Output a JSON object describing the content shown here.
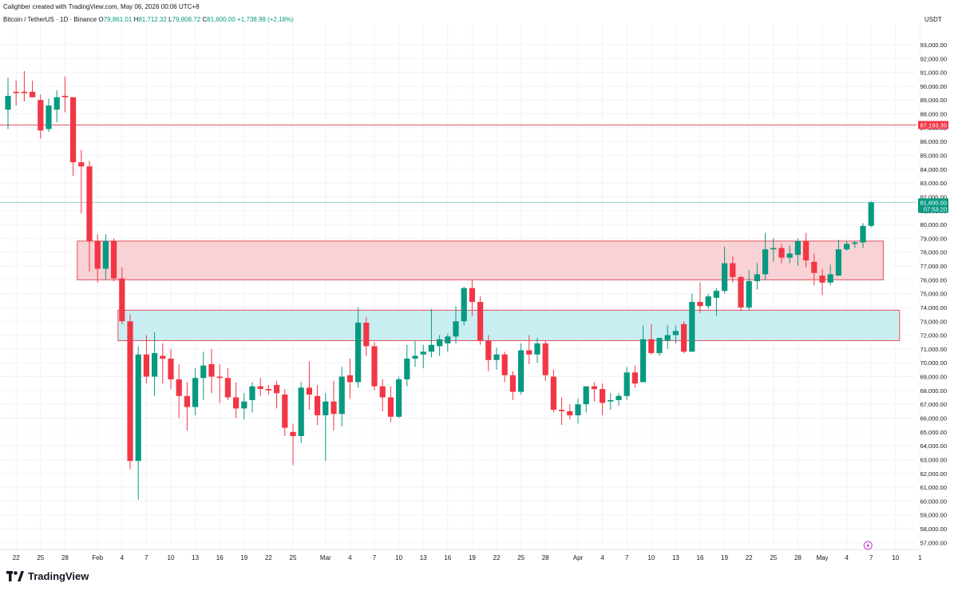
{
  "header": {
    "creator_line": "Calighber created with TradingView.com, May 06, 2026 00:06 UTC+8",
    "symbol": "Bitcoin / TetherUS · 1D · Binance",
    "open_label": "O",
    "open": "79,861.01",
    "high_label": "H",
    "high": "81,712.32",
    "low_label": "L",
    "low": "79,808.72",
    "close_label": "C",
    "close": "81,600.00",
    "change": "+1,738.99 (+2.18%)"
  },
  "brand": {
    "name": "TradingView",
    "icon": "tradingview-logo-icon"
  },
  "colors": {
    "up": "#089981",
    "down": "#f23645",
    "resistance_fill": "#f9d2d5",
    "support_fill": "#c9eef2",
    "zone_border": "#e0525c",
    "red_line": "#e55561",
    "price_line": "#9ad4c8",
    "grid": "#f0f3fa"
  },
  "chart_data": {
    "type": "candlestick",
    "currency": "USDT",
    "ylim": [
      56500,
      94500
    ],
    "y_ticks": [
      57000,
      58000,
      59000,
      60000,
      61000,
      62000,
      63000,
      64000,
      65000,
      66000,
      67000,
      68000,
      69000,
      70000,
      71000,
      72000,
      73000,
      74000,
      75000,
      76000,
      77000,
      78000,
      79000,
      80000,
      81000,
      82000,
      83000,
      84000,
      85000,
      86000,
      87000,
      88000,
      89000,
      90000,
      91000,
      92000,
      93000
    ],
    "y_tick_labels": [
      "57,000.00",
      "58,000.00",
      "59,000.00",
      "60,000.00",
      "61,000.00",
      "62,000.00",
      "63,000.00",
      "64,000.00",
      "65,000.00",
      "66,000.00",
      "67,000.00",
      "68,000.00",
      "69,000.00",
      "70,000.00",
      "71,000.00",
      "72,000.00",
      "73,000.00",
      "74,000.00",
      "75,000.00",
      "76,000.00",
      "77,000.00",
      "78,000.00",
      "79,000.00",
      "80,000.00",
      "81,000.00",
      "82,000.00",
      "83,000.00",
      "84,000.00",
      "85,000.00",
      "86,000.00",
      "87,000.00",
      "88,000.00",
      "89,000.00",
      "90,000.00",
      "91,000.00",
      "92,000.00",
      "93,000.00"
    ],
    "x_labels": [
      {
        "i": 1,
        "label": "22"
      },
      {
        "i": 4,
        "label": "25"
      },
      {
        "i": 7,
        "label": "28"
      },
      {
        "i": 11,
        "label": "Feb"
      },
      {
        "i": 14,
        "label": "4"
      },
      {
        "i": 17,
        "label": "7"
      },
      {
        "i": 20,
        "label": "10"
      },
      {
        "i": 23,
        "label": "13"
      },
      {
        "i": 26,
        "label": "16"
      },
      {
        "i": 29,
        "label": "19"
      },
      {
        "i": 32,
        "label": "22"
      },
      {
        "i": 35,
        "label": "25"
      },
      {
        "i": 39,
        "label": "Mar"
      },
      {
        "i": 42,
        "label": "4"
      },
      {
        "i": 45,
        "label": "7"
      },
      {
        "i": 48,
        "label": "10"
      },
      {
        "i": 51,
        "label": "13"
      },
      {
        "i": 54,
        "label": "16"
      },
      {
        "i": 57,
        "label": "19"
      },
      {
        "i": 60,
        "label": "22"
      },
      {
        "i": 63,
        "label": "25"
      },
      {
        "i": 66,
        "label": "28"
      },
      {
        "i": 70,
        "label": "Apr"
      },
      {
        "i": 73,
        "label": "4"
      },
      {
        "i": 76,
        "label": "7"
      },
      {
        "i": 79,
        "label": "10"
      },
      {
        "i": 82,
        "label": "13"
      },
      {
        "i": 85,
        "label": "16"
      },
      {
        "i": 88,
        "label": "19"
      },
      {
        "i": 91,
        "label": "22"
      },
      {
        "i": 94,
        "label": "25"
      },
      {
        "i": 97,
        "label": "28"
      },
      {
        "i": 100,
        "label": "May"
      },
      {
        "i": 103,
        "label": "4"
      },
      {
        "i": 106,
        "label": "7"
      },
      {
        "i": 109,
        "label": "10"
      },
      {
        "i": 112,
        "label": "1"
      }
    ],
    "candles": [
      {
        "o": 88300,
        "h": 90600,
        "l": 86900,
        "c": 89300
      },
      {
        "o": 89600,
        "h": 90400,
        "l": 88600,
        "c": 89500
      },
      {
        "o": 89600,
        "h": 91100,
        "l": 88900,
        "c": 89500
      },
      {
        "o": 89600,
        "h": 90400,
        "l": 89200,
        "c": 89200
      },
      {
        "o": 89000,
        "h": 89400,
        "l": 86200,
        "c": 86800
      },
      {
        "o": 86900,
        "h": 89100,
        "l": 86700,
        "c": 88600
      },
      {
        "o": 88300,
        "h": 89700,
        "l": 87400,
        "c": 89200
      },
      {
        "o": 89300,
        "h": 90700,
        "l": 88100,
        "c": 89200
      },
      {
        "o": 89200,
        "h": 89200,
        "l": 83500,
        "c": 84500
      },
      {
        "o": 84500,
        "h": 85400,
        "l": 80800,
        "c": 84200
      },
      {
        "o": 84200,
        "h": 84600,
        "l": 76600,
        "c": 78800
      },
      {
        "o": 78800,
        "h": 79300,
        "l": 75800,
        "c": 76800
      },
      {
        "o": 76800,
        "h": 79300,
        "l": 76000,
        "c": 78800
      },
      {
        "o": 78800,
        "h": 79000,
        "l": 75900,
        "c": 76100
      },
      {
        "o": 76100,
        "h": 76900,
        "l": 72800,
        "c": 73000
      },
      {
        "o": 73000,
        "h": 73500,
        "l": 62300,
        "c": 62900
      },
      {
        "o": 62900,
        "h": 71200,
        "l": 60100,
        "c": 70600
      },
      {
        "o": 70600,
        "h": 72000,
        "l": 68500,
        "c": 69000
      },
      {
        "o": 69000,
        "h": 72200,
        "l": 67600,
        "c": 70700
      },
      {
        "o": 70500,
        "h": 71400,
        "l": 68500,
        "c": 70300
      },
      {
        "o": 70300,
        "h": 71000,
        "l": 68100,
        "c": 68800
      },
      {
        "o": 68800,
        "h": 69900,
        "l": 66000,
        "c": 67600
      },
      {
        "o": 67600,
        "h": 68600,
        "l": 65100,
        "c": 66800
      },
      {
        "o": 66800,
        "h": 69600,
        "l": 66200,
        "c": 68900
      },
      {
        "o": 68900,
        "h": 70800,
        "l": 67300,
        "c": 69800
      },
      {
        "o": 69900,
        "h": 71000,
        "l": 67800,
        "c": 69000
      },
      {
        "o": 69000,
        "h": 69900,
        "l": 67100,
        "c": 68900
      },
      {
        "o": 68900,
        "h": 69600,
        "l": 67300,
        "c": 67500
      },
      {
        "o": 67500,
        "h": 68600,
        "l": 66000,
        "c": 66700
      },
      {
        "o": 66700,
        "h": 67800,
        "l": 65900,
        "c": 67200
      },
      {
        "o": 67300,
        "h": 68600,
        "l": 66400,
        "c": 68300
      },
      {
        "o": 68300,
        "h": 68900,
        "l": 67600,
        "c": 68100
      },
      {
        "o": 68100,
        "h": 68400,
        "l": 67700,
        "c": 68000
      },
      {
        "o": 68400,
        "h": 68700,
        "l": 66700,
        "c": 67800
      },
      {
        "o": 67700,
        "h": 68100,
        "l": 64700,
        "c": 65300
      },
      {
        "o": 65000,
        "h": 65600,
        "l": 62600,
        "c": 64700
      },
      {
        "o": 64700,
        "h": 68600,
        "l": 64200,
        "c": 68200
      },
      {
        "o": 68200,
        "h": 70100,
        "l": 66600,
        "c": 67700
      },
      {
        "o": 67600,
        "h": 68400,
        "l": 65500,
        "c": 66200
      },
      {
        "o": 66200,
        "h": 67800,
        "l": 62900,
        "c": 67200
      },
      {
        "o": 67200,
        "h": 68700,
        "l": 65100,
        "c": 66300
      },
      {
        "o": 66300,
        "h": 69700,
        "l": 65400,
        "c": 69000
      },
      {
        "o": 69100,
        "h": 70300,
        "l": 67400,
        "c": 68600
      },
      {
        "o": 68600,
        "h": 74000,
        "l": 68200,
        "c": 72900
      },
      {
        "o": 72900,
        "h": 73300,
        "l": 70500,
        "c": 71200
      },
      {
        "o": 71200,
        "h": 71500,
        "l": 68000,
        "c": 68300
      },
      {
        "o": 68300,
        "h": 68800,
        "l": 66500,
        "c": 67500
      },
      {
        "o": 67500,
        "h": 68300,
        "l": 65700,
        "c": 66100
      },
      {
        "o": 66100,
        "h": 69000,
        "l": 66000,
        "c": 68800
      },
      {
        "o": 68800,
        "h": 71300,
        "l": 68300,
        "c": 70300
      },
      {
        "o": 70300,
        "h": 71600,
        "l": 69700,
        "c": 70500
      },
      {
        "o": 70600,
        "h": 71300,
        "l": 69600,
        "c": 70800
      },
      {
        "o": 70800,
        "h": 73900,
        "l": 70400,
        "c": 71300
      },
      {
        "o": 71200,
        "h": 72000,
        "l": 70500,
        "c": 71700
      },
      {
        "o": 71400,
        "h": 72100,
        "l": 70800,
        "c": 71900
      },
      {
        "o": 71900,
        "h": 74100,
        "l": 71400,
        "c": 73000
      },
      {
        "o": 73000,
        "h": 75500,
        "l": 72700,
        "c": 75400
      },
      {
        "o": 75400,
        "h": 76000,
        "l": 73400,
        "c": 74400
      },
      {
        "o": 74400,
        "h": 74800,
        "l": 71300,
        "c": 71600
      },
      {
        "o": 71600,
        "h": 72000,
        "l": 69400,
        "c": 70200
      },
      {
        "o": 70200,
        "h": 71100,
        "l": 69500,
        "c": 70600
      },
      {
        "o": 70600,
        "h": 70800,
        "l": 68600,
        "c": 69100
      },
      {
        "o": 69100,
        "h": 69400,
        "l": 67300,
        "c": 67900
      },
      {
        "o": 67900,
        "h": 71400,
        "l": 67700,
        "c": 70900
      },
      {
        "o": 70900,
        "h": 72000,
        "l": 69900,
        "c": 70600
      },
      {
        "o": 70600,
        "h": 71800,
        "l": 70000,
        "c": 71400
      },
      {
        "o": 71400,
        "h": 71600,
        "l": 68700,
        "c": 69100
      },
      {
        "o": 69000,
        "h": 69500,
        "l": 66400,
        "c": 66600
      },
      {
        "o": 66600,
        "h": 67500,
        "l": 65500,
        "c": 66500
      },
      {
        "o": 66500,
        "h": 67000,
        "l": 65900,
        "c": 66200
      },
      {
        "o": 66200,
        "h": 67400,
        "l": 65600,
        "c": 67000
      },
      {
        "o": 67000,
        "h": 68200,
        "l": 66400,
        "c": 68300
      },
      {
        "o": 68300,
        "h": 68600,
        "l": 67200,
        "c": 68100
      },
      {
        "o": 68100,
        "h": 68500,
        "l": 66200,
        "c": 67100
      },
      {
        "o": 67200,
        "h": 67800,
        "l": 66600,
        "c": 67300
      },
      {
        "o": 67300,
        "h": 67800,
        "l": 66900,
        "c": 67600
      },
      {
        "o": 67600,
        "h": 69700,
        "l": 67300,
        "c": 69300
      },
      {
        "o": 69300,
        "h": 69800,
        "l": 68200,
        "c": 68500
      },
      {
        "o": 68600,
        "h": 72700,
        "l": 68600,
        "c": 71700
      },
      {
        "o": 71700,
        "h": 72800,
        "l": 70600,
        "c": 70700
      },
      {
        "o": 70700,
        "h": 71700,
        "l": 70500,
        "c": 71800
      },
      {
        "o": 71600,
        "h": 72700,
        "l": 71000,
        "c": 72000
      },
      {
        "o": 72000,
        "h": 72700,
        "l": 71400,
        "c": 72300
      },
      {
        "o": 72800,
        "h": 73000,
        "l": 70700,
        "c": 70800
      },
      {
        "o": 70800,
        "h": 75000,
        "l": 70800,
        "c": 74400
      },
      {
        "o": 74400,
        "h": 75800,
        "l": 73600,
        "c": 74100
      },
      {
        "o": 74100,
        "h": 75000,
        "l": 73900,
        "c": 74800
      },
      {
        "o": 74700,
        "h": 75400,
        "l": 73400,
        "c": 75200
      },
      {
        "o": 75200,
        "h": 78400,
        "l": 75000,
        "c": 77200
      },
      {
        "o": 77200,
        "h": 77700,
        "l": 75800,
        "c": 76200
      },
      {
        "o": 76200,
        "h": 76300,
        "l": 73800,
        "c": 74000
      },
      {
        "o": 74000,
        "h": 76700,
        "l": 73800,
        "c": 75900
      },
      {
        "o": 75900,
        "h": 77200,
        "l": 75300,
        "c": 76400
      },
      {
        "o": 76400,
        "h": 79400,
        "l": 76000,
        "c": 78200
      },
      {
        "o": 78200,
        "h": 79000,
        "l": 77300,
        "c": 78300
      },
      {
        "o": 78300,
        "h": 78600,
        "l": 77200,
        "c": 77600
      },
      {
        "o": 77600,
        "h": 78500,
        "l": 77200,
        "c": 77900
      },
      {
        "o": 77800,
        "h": 79000,
        "l": 77000,
        "c": 78800
      },
      {
        "o": 78800,
        "h": 79400,
        "l": 76900,
        "c": 77400
      },
      {
        "o": 77300,
        "h": 77900,
        "l": 75600,
        "c": 76500
      },
      {
        "o": 76300,
        "h": 76800,
        "l": 74900,
        "c": 75800
      },
      {
        "o": 75800,
        "h": 77100,
        "l": 75600,
        "c": 76400
      },
      {
        "o": 76300,
        "h": 78900,
        "l": 76300,
        "c": 78200
      },
      {
        "o": 78200,
        "h": 78800,
        "l": 78100,
        "c": 78600
      },
      {
        "o": 78600,
        "h": 78800,
        "l": 78300,
        "c": 78700
      },
      {
        "o": 78700,
        "h": 80100,
        "l": 78300,
        "c": 79900
      },
      {
        "o": 79900,
        "h": 81700,
        "l": 79800,
        "c": 81600
      }
    ],
    "zones": [
      {
        "name": "resistance",
        "from": 76000,
        "to": 78800,
        "i_start": 9,
        "i_end": 107
      },
      {
        "name": "support",
        "from": 71600,
        "to": 73800,
        "i_start": 14,
        "i_end": 109
      }
    ],
    "level_line": {
      "value": 87193.35,
      "label": "87,193.35"
    },
    "last_price": {
      "value": 81600,
      "label": "81,600.00",
      "countdown": "07:53:20"
    },
    "x_marker": {
      "i": 106,
      "icon": "lightning-bolt-icon"
    }
  }
}
